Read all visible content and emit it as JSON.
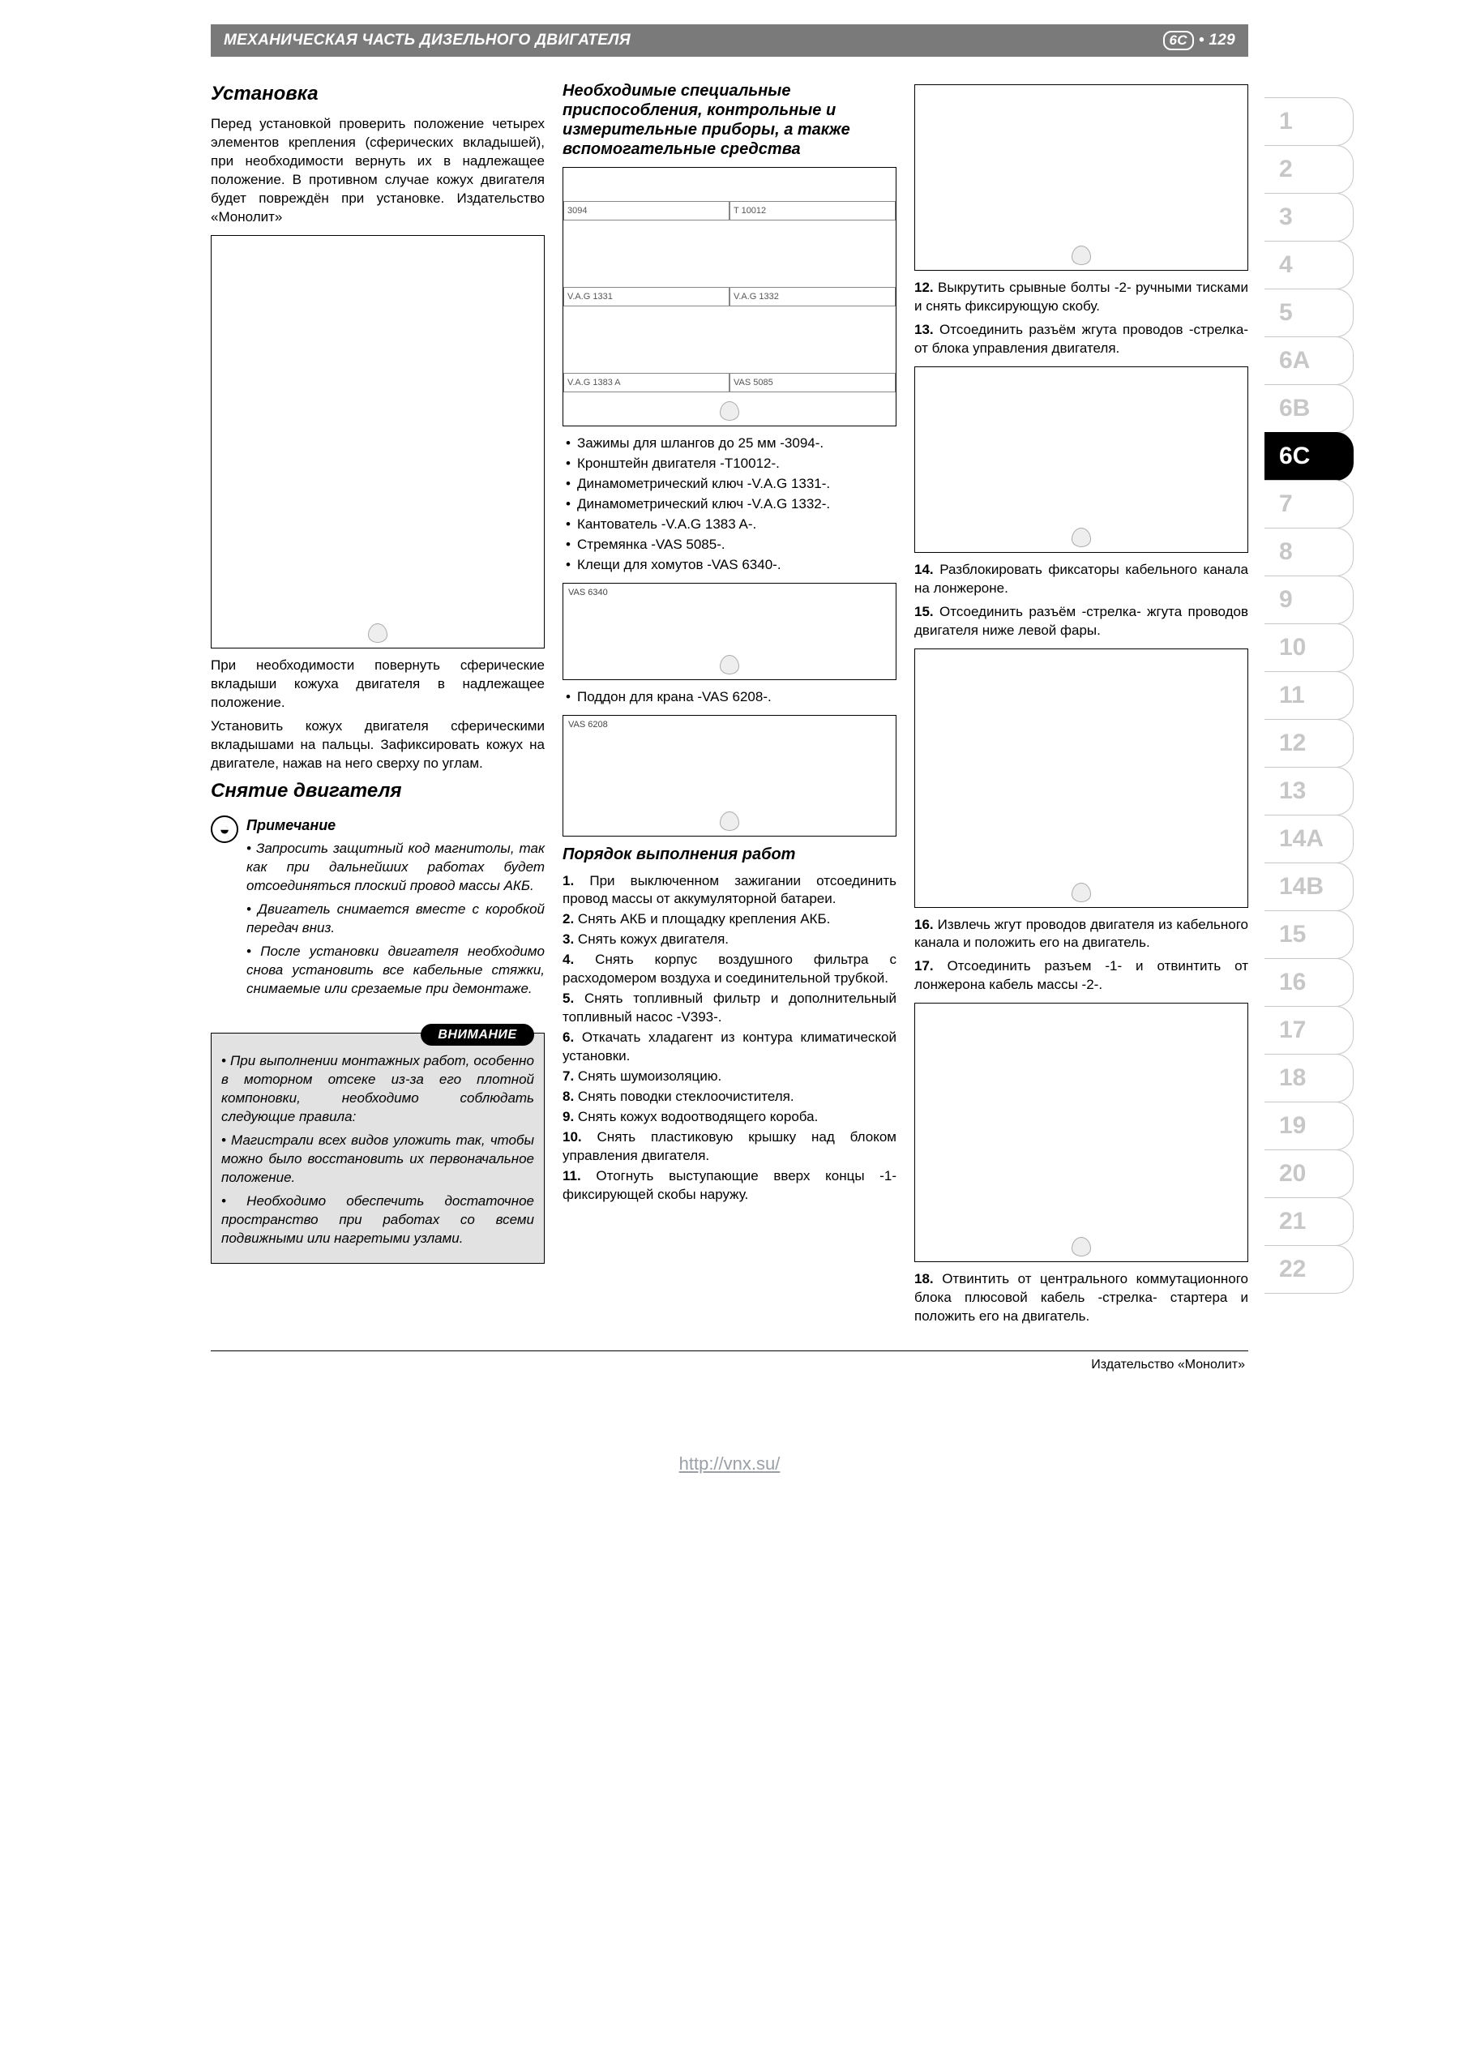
{
  "header": {
    "title": "МЕХАНИЧЕСКАЯ ЧАСТЬ ДИЗЕЛЬНОГО ДВИГАТЕЛЯ",
    "badge": "6C",
    "page": "• 129"
  },
  "tabs": [
    "1",
    "2",
    "3",
    "4",
    "5",
    "6A",
    "6B",
    "6C",
    "7",
    "8",
    "9",
    "10",
    "11",
    "12",
    "13",
    "14A",
    "14B",
    "15",
    "16",
    "17",
    "18",
    "19",
    "20",
    "21",
    "22"
  ],
  "active_tab": "6C",
  "col1": {
    "h_install": "Установка",
    "p1": "Перед установкой проверить положение четырех элементов крепления (сферических вкладышей), при необходимости вернуть их в надлежащее положение. В противном случае кожух двигателя будет повреждён при установке. Издательство «Монолит»",
    "p2": "При необходимости повернуть сферические вкладыши кожуха двигателя в надлежащее положение.",
    "p3": "Установить кожух двигателя сферическими вкладышами на пальцы. Зафиксировать кожух на двигателе, нажав на него сверху по углам.",
    "h_remove": "Снятие двигателя",
    "note_title": "Примечание",
    "note1": "• Запросить защитный код магнитолы, так как при дальнейших работах будет отсоединяться плоский провод массы АКБ.",
    "note2": "• Двигатель снимается вместе с коробкой передач вниз.",
    "note3": "• После установки двигателя необходимо снова установить все кабельные стяжки, снимаемые или срезаемые при демонтаже.",
    "warn_label": "ВНИМАНИЕ",
    "warn1": "• При выполнении монтажных работ, особенно в моторном отсеке из-за его плотной компоновки, необходимо соблюдать следующие правила:",
    "warn2": "• Магистрали всех видов уложить так, чтобы можно было восстановить их первоначальное положение.",
    "warn3": "• Необходимо обеспечить достаточное пространство при работах со всеми подвижными или нагретыми узлами."
  },
  "col2": {
    "h_tools": "Необходимые специальные приспособления, контрольные и измерительные приборы, а также вспомогательные средства",
    "tool_cells": [
      "3094",
      "T 10012",
      "V.A.G 1331",
      "V.A.G 1332",
      "V.A.G 1383 A",
      "VAS 5085"
    ],
    "tools": [
      "Зажимы для шлангов до 25 мм -3094-.",
      "Кронштейн двигателя -T10012-.",
      "Динамометрический ключ -V.A.G 1331-.",
      "Динамометрический ключ -V.A.G 1332-.",
      "Кантователь -V.A.G 1383 A-.",
      "Стремянка -VAS 5085-.",
      "Клещи для хомутов -VAS 6340-."
    ],
    "fig2_label": "VAS 6340",
    "tool_pan": "Поддон для крана -VAS 6208-.",
    "fig3_label": "VAS 6208",
    "h_order": "Порядок выполнения работ",
    "steps": [
      "При выключенном зажигании отсоединить провод массы от аккумуляторной батареи.",
      "Снять АКБ и площадку крепления АКБ.",
      "Снять кожух двигателя.",
      "Снять корпус воздушного фильтра с расходомером воздуха и соединительной трубкой.",
      "Снять топливный фильтр и дополнительный топливный насос -V393-.",
      "Откачать хладагент из контура климатической установки.",
      "Снять шумоизоляцию.",
      "Снять поводки стеклоочистителя.",
      "Снять кожух водоотводящего короба.",
      "Снять пластиковую крышку над блоком управления двигателя.",
      "Отогнуть выступающие вверх концы -1- фиксирующей скобы наружу."
    ]
  },
  "col3": {
    "s12": "Выкрутить срывные болты -2- ручными тисками и снять фиксирующую скобу.",
    "s13": "Отсоединить разъём жгута проводов -стрелка- от блока управления двигателя.",
    "s14": "Разблокировать фиксаторы кабельного канала на лонжероне.",
    "s15": "Отсоединить разъём -стрелка- жгута проводов двигателя ниже левой фары.",
    "s16": "Извлечь жгут проводов двигателя из кабельного канала и положить его на двигатель.",
    "s17": "Отсоединить разъем -1- и отвинтить от лонжерона кабель массы -2-.",
    "s18": "Отвинтить от центрального коммутационного блока плюсовой кабель -стрелка- стартера и положить его на двигатель."
  },
  "footer": "Издательство «Монолит»",
  "bottom_link": "http://vnx.su/"
}
